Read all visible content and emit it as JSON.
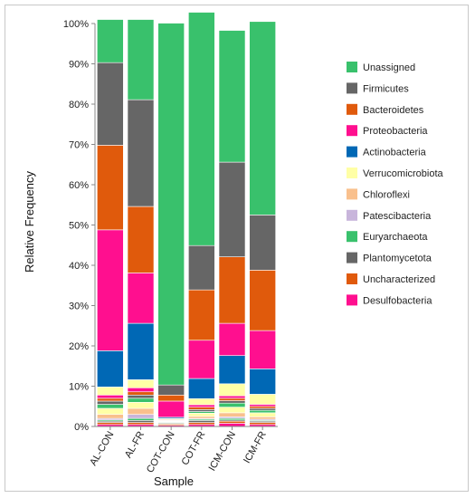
{
  "chart_data": {
    "type": "bar",
    "stacked": true,
    "xlabel": "Sample",
    "ylabel": "Relative Frequency",
    "ylim": [
      0,
      100
    ],
    "yticks": [
      "0%",
      "10%",
      "20%",
      "30%",
      "40%",
      "50%",
      "60%",
      "70%",
      "80%",
      "90%",
      "100%"
    ],
    "categories": [
      "AL-CON",
      "AL-FR",
      "COT-CON",
      "COT-FR",
      "ICM-CON",
      "ICM-FR"
    ],
    "legend_position": "right",
    "series": [
      {
        "name": "Desulfobacteria",
        "color": "#ff0f8f",
        "values": [
          0.5,
          0.5,
          0.3,
          0.5,
          0.8,
          0.5
        ]
      },
      {
        "name": "Uncharacterized",
        "color": "#e05a0c",
        "values": [
          0.5,
          0.5,
          0.3,
          0.5,
          0.5,
          0.5
        ]
      },
      {
        "name": "Plantomycetota",
        "color": "#666666",
        "values": [
          0.3,
          0.5,
          0.2,
          0.5,
          0.3,
          0.3
        ]
      },
      {
        "name": "Euryarchaeota",
        "color": "#39c16c",
        "values": [
          0.3,
          0.5,
          0.2,
          0.3,
          0.4,
          0.2
        ]
      },
      {
        "name": "Patescibacteria",
        "color": "#c8b5db",
        "values": [
          0.4,
          1.0,
          0.1,
          0.2,
          0.4,
          0.3
        ]
      },
      {
        "name": "Chloroflexi",
        "color": "#f9c08d",
        "values": [
          1.0,
          1.5,
          0.1,
          0.5,
          1.0,
          0.6
        ]
      },
      {
        "name": "Verrucomicrobiota",
        "color": "#ffffa6",
        "values": [
          1.5,
          1.5,
          0.1,
          0.8,
          1.4,
          1.0
        ]
      },
      {
        "name": "Euryarchaeota",
        "color": "#39c16c",
        "values": [
          1.0,
          1.0,
          0.1,
          0.4,
          1.0,
          0.6
        ]
      },
      {
        "name": "Plantomycetota",
        "color": "#666666",
        "values": [
          0.8,
          0.8,
          0.1,
          0.5,
          0.6,
          0.5
        ]
      },
      {
        "name": "Uncharacterized",
        "color": "#e05a0c",
        "values": [
          0.7,
          0.8,
          0.2,
          0.6,
          0.6,
          0.5
        ]
      },
      {
        "name": "Desulfobacteria",
        "color": "#ff0f8f",
        "values": [
          0.8,
          1.0,
          0.1,
          0.6,
          0.6,
          0.5
        ]
      },
      {
        "name": "Verrucomicrobiota",
        "color": "#ffffa6",
        "values": [
          2.0,
          2.0,
          0.2,
          1.5,
          3.0,
          2.5
        ]
      },
      {
        "name": "Actinobacteria",
        "color": "#0068b5",
        "values": [
          9.0,
          14.0,
          0.3,
          5.0,
          7.0,
          6.3
        ]
      },
      {
        "name": "Proteobacteria",
        "color": "#ff0f8f",
        "values": [
          30.0,
          12.5,
          4.0,
          9.5,
          8.0,
          9.5
        ]
      },
      {
        "name": "Bacteroidetes",
        "color": "#e05a0c",
        "values": [
          21.0,
          16.5,
          1.5,
          12.5,
          16.5,
          15.0
        ]
      },
      {
        "name": "Firmicutes",
        "color": "#666666",
        "values": [
          20.5,
          26.5,
          2.5,
          11.0,
          23.5,
          13.7
        ]
      },
      {
        "name": "Unassigned",
        "color": "#39c16c",
        "values": [
          10.7,
          19.9,
          89.8,
          57.9,
          32.7,
          48.0
        ]
      }
    ],
    "legend": [
      {
        "name": "Unassigned",
        "color": "#39c16c"
      },
      {
        "name": "Firmicutes",
        "color": "#666666"
      },
      {
        "name": "Bacteroidetes",
        "color": "#e05a0c"
      },
      {
        "name": "Proteobacteria",
        "color": "#ff0f8f"
      },
      {
        "name": "Actinobacteria",
        "color": "#0068b5"
      },
      {
        "name": "Verrucomicrobiota",
        "color": "#ffffa6"
      },
      {
        "name": "Chloroflexi",
        "color": "#f9c08d"
      },
      {
        "name": "Patescibacteria",
        "color": "#c8b5db"
      },
      {
        "name": "Euryarchaeota",
        "color": "#39c16c"
      },
      {
        "name": "Plantomycetota",
        "color": "#666666"
      },
      {
        "name": "Uncharacterized",
        "color": "#e05a0c"
      },
      {
        "name": "Desulfobacteria",
        "color": "#ff0f8f"
      }
    ]
  }
}
